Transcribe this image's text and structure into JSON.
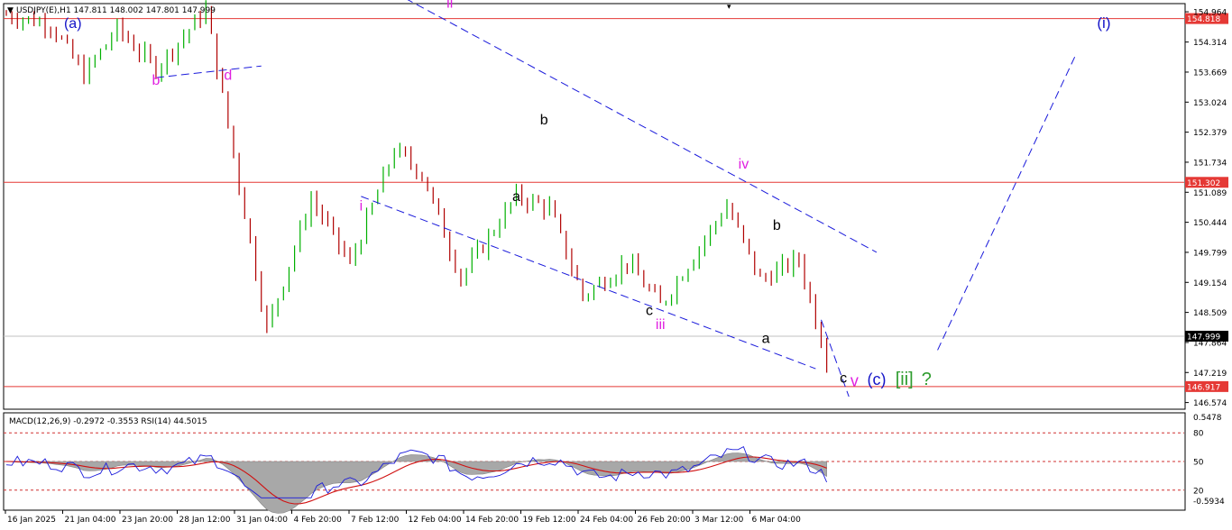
{
  "chart_header": {
    "symbol_text": "USDJPY(E),H1  147.811 148.002 147.801 147.999"
  },
  "indicator_header": {
    "text": "MACD(12,26,9) -0.2972 -0.3553  RSI(14) 44.5015"
  },
  "colors": {
    "bull": "#00b000",
    "bear": "#b00000",
    "hline": "#e53935",
    "channel": "#1a1adb",
    "pink": "#e020e0",
    "navy": "#1414c8",
    "green": "#2e9c2e",
    "macd_hist": "#a8a8a8",
    "rsi": "#1a1adb",
    "signal": "#d01010"
  },
  "chart_data": {
    "type": "candlestick",
    "price_ticks": [
      "154.964",
      "154.314",
      "153.669",
      "153.024",
      "152.379",
      "151.734",
      "151.089",
      "150.444",
      "149.799",
      "149.154",
      "148.509",
      "147.864",
      "147.219",
      "146.574"
    ],
    "price_range": [
      146.45,
      155.12
    ],
    "x_ticks": [
      "16 Jan 2025",
      "21 Jan 04:00",
      "23 Jan 20:00",
      "28 Jan 12:00",
      "31 Jan 04:00",
      "4 Feb 20:00",
      "7 Feb 12:00",
      "12 Feb 04:00",
      "14 Feb 20:00",
      "19 Feb 12:00",
      "24 Feb 04:00",
      "26 Feb 20:00",
      "3 Mar 12:00",
      "6 Mar 04:00"
    ],
    "horizontal_lines": [
      {
        "price": 154.818,
        "label": "154.818"
      },
      {
        "price": 151.302,
        "label": "151.302"
      },
      {
        "price": 146.917,
        "label": "146.917"
      }
    ],
    "current_price": {
      "price": 147.999,
      "label": "147.999"
    },
    "price_path": [
      [
        0,
        154.9
      ],
      [
        8,
        154.7
      ],
      [
        14,
        153.6
      ],
      [
        20,
        154.6
      ],
      [
        27,
        153.75
      ],
      [
        36,
        155.0
      ],
      [
        47,
        148.15
      ],
      [
        55,
        150.95
      ],
      [
        62,
        149.55
      ],
      [
        70,
        152.0
      ],
      [
        75,
        151.5
      ],
      [
        82,
        149.25
      ],
      [
        92,
        151.0
      ],
      [
        98,
        150.75
      ],
      [
        104,
        148.85
      ],
      [
        112,
        149.6
      ],
      [
        118,
        148.65
      ],
      [
        130,
        150.8
      ],
      [
        136,
        149.2
      ],
      [
        143,
        149.65
      ],
      [
        148,
        147.5
      ]
    ],
    "indicators": {
      "macd_axis": [
        "0.5478",
        "-0.5934"
      ],
      "rsi_levels": [
        "80",
        "50",
        "20"
      ],
      "rsi_last": 44.5015,
      "macd_last": -0.2972,
      "signal_last": -0.3553
    },
    "wave_labels": [
      {
        "text": "(a)",
        "color": "navy",
        "size": 16,
        "bar": 12,
        "price": 154.62
      },
      {
        "text": "b",
        "color": "pink",
        "size": 16,
        "bar": 27,
        "price": 153.4
      },
      {
        "text": "d",
        "color": "pink",
        "size": 16,
        "bar": 40,
        "price": 153.5
      },
      {
        "text": "ii",
        "color": "pink",
        "size": 16,
        "bar": 80,
        "price": 155.05
      },
      {
        "text": "i",
        "color": "pink",
        "size": 16,
        "bar": 64,
        "price": 150.7
      },
      {
        "text": "b",
        "color": "black",
        "size": 16,
        "bar": 97,
        "price": 152.55
      },
      {
        "text": "a",
        "color": "black",
        "size": 16,
        "bar": 92,
        "price": 150.9
      },
      {
        "text": "iv",
        "color": "pink",
        "size": 16,
        "bar": 133,
        "price": 151.6
      },
      {
        "text": "b",
        "color": "black",
        "size": 16,
        "bar": 139,
        "price": 150.28
      },
      {
        "text": "c",
        "color": "black",
        "size": 16,
        "bar": 116,
        "price": 148.45
      },
      {
        "text": "iii",
        "color": "pink",
        "size": 16,
        "bar": 118,
        "price": 148.15
      },
      {
        "text": "a",
        "color": "black",
        "size": 16,
        "bar": 137,
        "price": 147.85
      },
      {
        "text": "(i)",
        "color": "navy",
        "size": 17,
        "bar": 198,
        "price": 154.62
      },
      {
        "text": "c",
        "color": "black",
        "size": 16,
        "bar": 151,
        "price": 147.0
      },
      {
        "text": "v",
        "color": "pink",
        "size": 18,
        "bar": 153,
        "price": 146.92
      },
      {
        "text": "(c)",
        "color": "navy",
        "size": 18,
        "bar": 157,
        "price": 146.95
      },
      {
        "text": "[ii]",
        "color": "green",
        "size": 20,
        "bar": 162,
        "price": 146.95
      },
      {
        "text": "?",
        "color": "green",
        "size": 20,
        "bar": 166,
        "price": 146.95
      }
    ],
    "trend_lines": [
      {
        "from": [
          27,
          153.55
        ],
        "to": [
          46,
          153.8
        ]
      },
      {
        "from": [
          72,
          155.25
        ],
        "to": [
          157,
          149.8
        ]
      },
      {
        "from": [
          64,
          151.0
        ],
        "to": [
          146,
          147.3
        ]
      },
      {
        "from": [
          147,
          148.35
        ],
        "to": [
          152,
          146.7
        ]
      },
      {
        "from": [
          168,
          147.7
        ],
        "to": [
          193,
          154.06
        ]
      }
    ]
  }
}
